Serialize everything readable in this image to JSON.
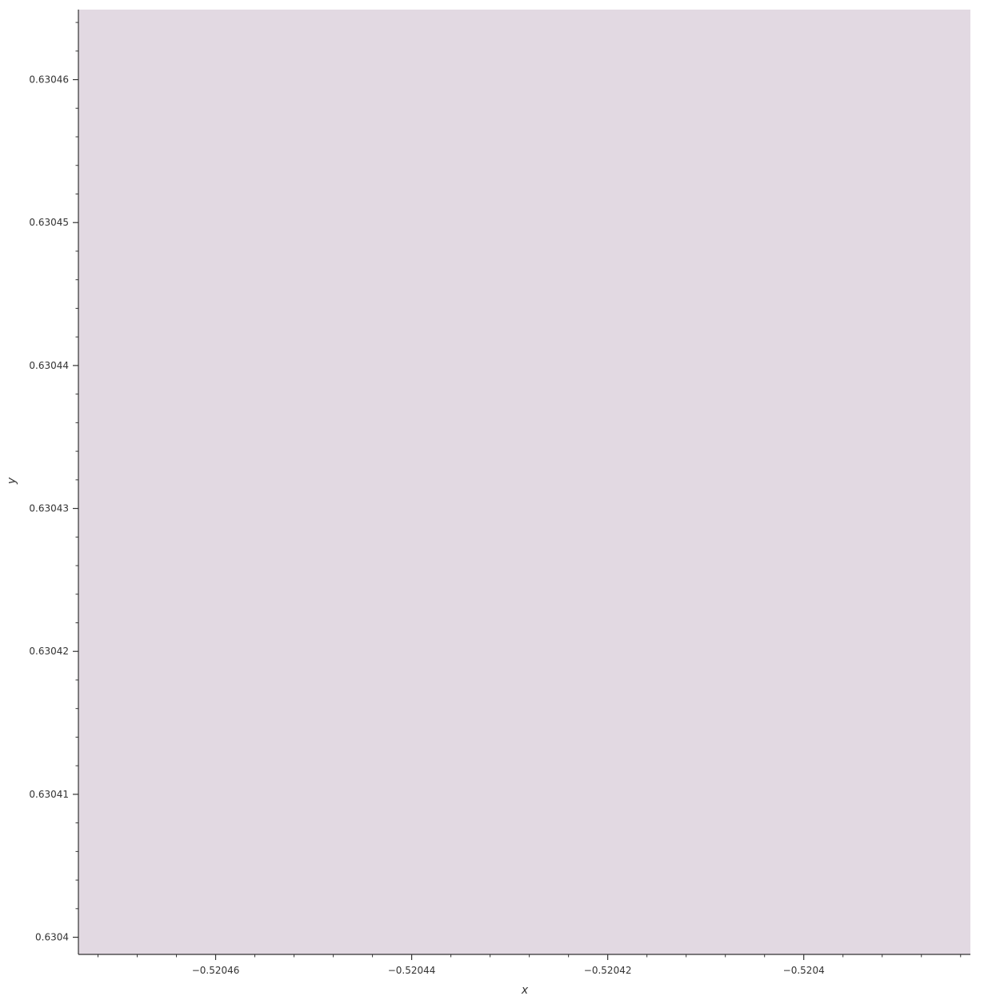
{
  "chart_data": {
    "type": "heatmap",
    "subject": "Mandelbrot set escape-time render",
    "title": "",
    "xlabel": "x",
    "ylabel": "y",
    "xlim": [
      -0.520474,
      -0.520383
    ],
    "ylim": [
      0.6303988,
      0.6304649
    ],
    "x_ticks": [
      {
        "value": -0.52046,
        "label": "−0.52046"
      },
      {
        "value": -0.52044,
        "label": "−0.52044"
      },
      {
        "value": -0.52042,
        "label": "−0.52042"
      },
      {
        "value": -0.5204,
        "label": "−0.5204"
      }
    ],
    "y_ticks": [
      {
        "value": 0.6304,
        "label": "0.6304"
      },
      {
        "value": 0.63041,
        "label": "0.63041"
      },
      {
        "value": 0.63042,
        "label": "0.63042"
      },
      {
        "value": 0.63043,
        "label": "0.63043"
      },
      {
        "value": 0.63044,
        "label": "0.63044"
      },
      {
        "value": 0.63045,
        "label": "0.63045"
      },
      {
        "value": 0.63046,
        "label": "0.63046"
      }
    ],
    "x_minor_step": 4e-06,
    "y_minor_step": 2e-06,
    "colormap": "twilight_shifted",
    "set_color": "#e2d9e2",
    "grid": false,
    "legend": "none"
  }
}
